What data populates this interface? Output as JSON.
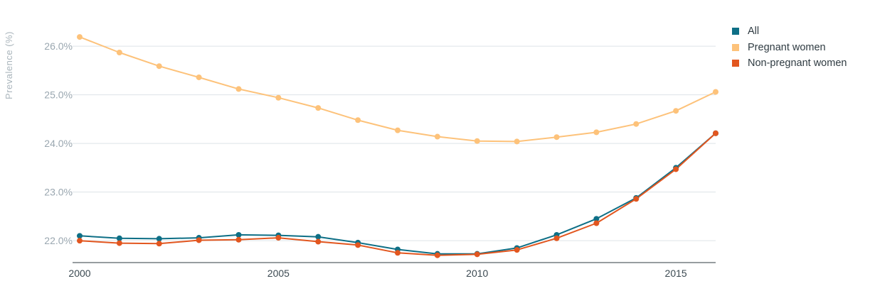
{
  "chart_data": {
    "type": "line",
    "ylabel": "Prevalence (%)",
    "xlabel": "",
    "x": [
      2000,
      2001,
      2002,
      2003,
      2004,
      2005,
      2006,
      2007,
      2008,
      2009,
      2010,
      2011,
      2012,
      2013,
      2014,
      2015,
      2016
    ],
    "x_ticks": [
      "2000",
      "2005",
      "2010",
      "2015"
    ],
    "y_ticks": [
      "22.0%",
      "23.0%",
      "24.0%",
      "25.0%",
      "26.0%"
    ],
    "y_tick_values": [
      22,
      23,
      24,
      25,
      26
    ],
    "ylim": [
      21.55,
      26.6
    ],
    "xlim": [
      2000,
      2016
    ],
    "grid": true,
    "legend_position": "top-right",
    "series": [
      {
        "name": "All",
        "color": "#0e6f86",
        "values": [
          22.1,
          22.05,
          22.04,
          22.06,
          22.12,
          22.11,
          22.08,
          21.96,
          21.82,
          21.73,
          21.73,
          21.85,
          22.12,
          22.45,
          22.88,
          23.5,
          24.21
        ]
      },
      {
        "name": "Pregnant women",
        "color": "#fdc27a",
        "values": [
          26.19,
          25.87,
          25.59,
          25.36,
          25.12,
          24.94,
          24.73,
          24.48,
          24.27,
          24.14,
          24.05,
          24.04,
          24.13,
          24.23,
          24.4,
          24.67,
          25.06
        ]
      },
      {
        "name": "Non-pregnant women",
        "color": "#e2561f",
        "values": [
          22.0,
          21.95,
          21.94,
          22.01,
          22.02,
          22.06,
          21.98,
          21.91,
          21.75,
          21.7,
          21.72,
          21.81,
          22.05,
          22.36,
          22.86,
          23.47,
          24.21
        ]
      }
    ]
  }
}
